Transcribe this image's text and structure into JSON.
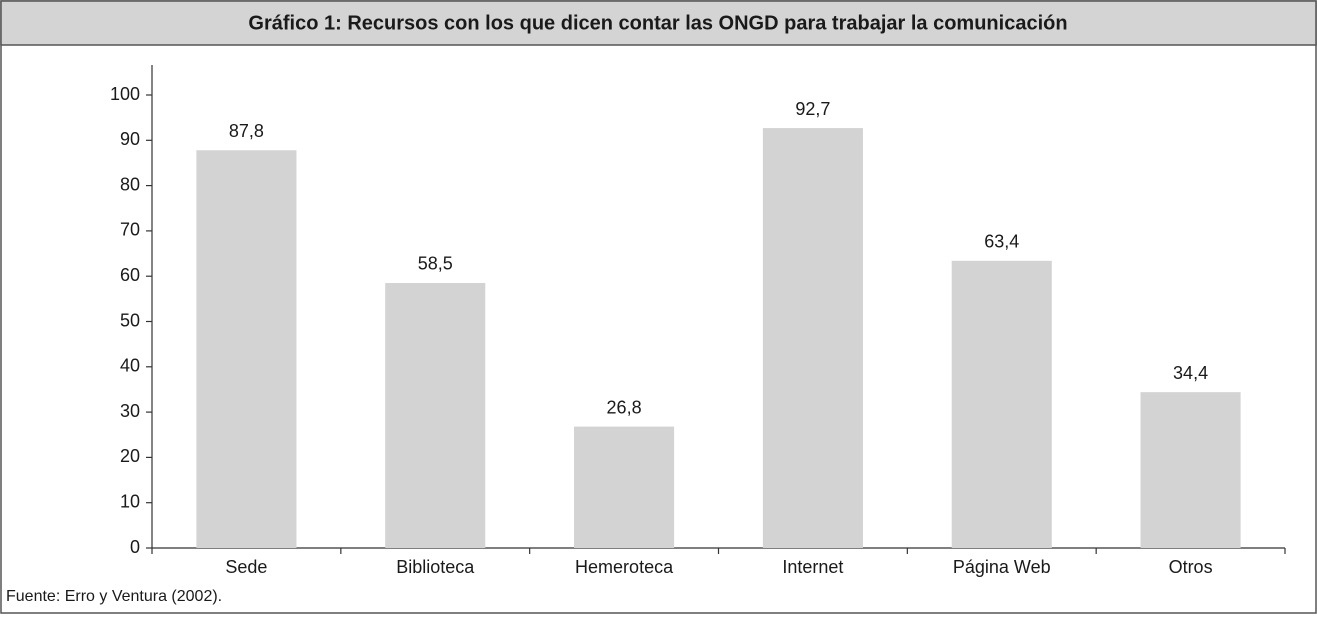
{
  "chart_data": {
    "type": "bar",
    "title": "Gráfico 1: Recursos con los que dicen contar las ONGD para trabajar la comunicación",
    "categories": [
      "Sede",
      "Biblioteca",
      "Hemeroteca",
      "Internet",
      "Página Web",
      "Otros"
    ],
    "values": [
      87.8,
      58.5,
      26.8,
      92.7,
      63.4,
      34.4
    ],
    "value_labels": [
      "87,8",
      "58,5",
      "26,8",
      "92,7",
      "63,4",
      "34,4"
    ],
    "color": "#d3d3d3",
    "ylim": [
      0,
      100
    ],
    "yticks": [
      0,
      10,
      20,
      30,
      40,
      50,
      60,
      70,
      80,
      90,
      100
    ],
    "grid": false,
    "source": "Fuente: Erro y Ventura (2002)."
  }
}
